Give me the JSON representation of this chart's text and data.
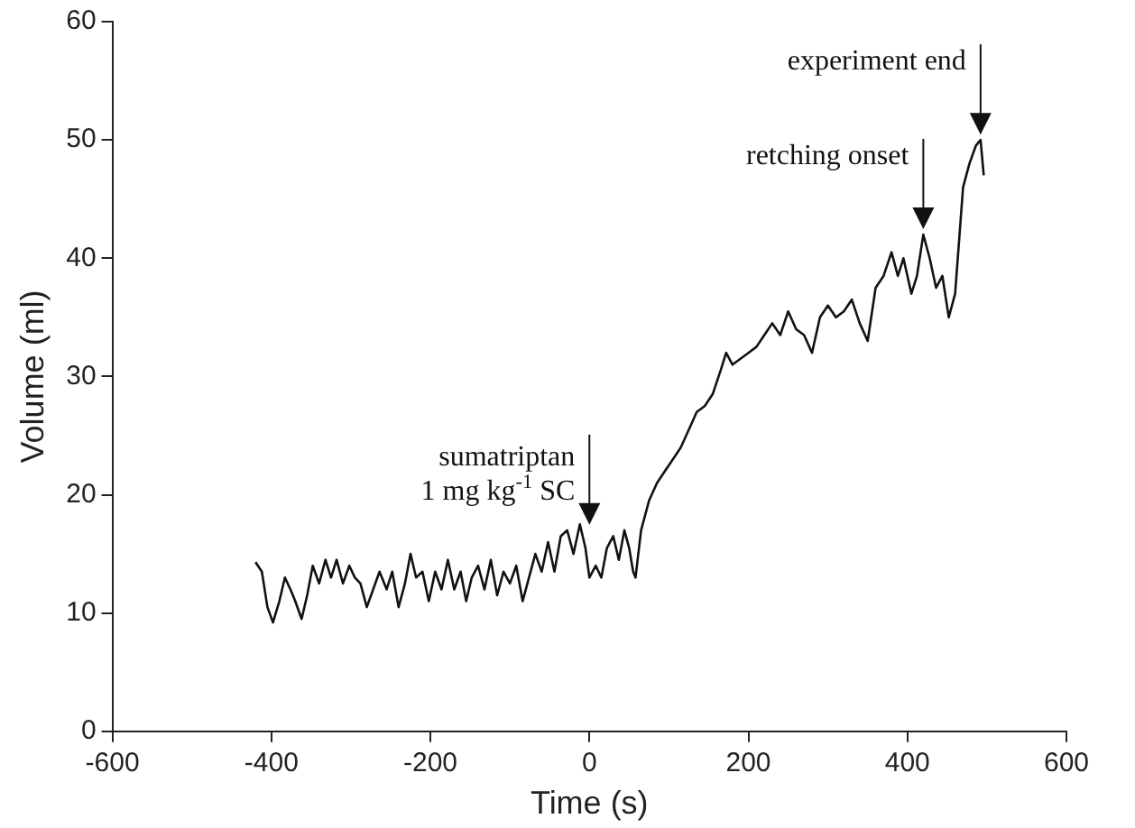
{
  "chart_data": {
    "type": "line",
    "xlabel": "Time (s)",
    "ylabel": "Volume (ml)",
    "xlim": [
      -600,
      600
    ],
    "xticks": [
      -600,
      -400,
      -200,
      0,
      200,
      400,
      600
    ],
    "ylim": [
      0,
      60
    ],
    "yticks": [
      0,
      10,
      20,
      30,
      40,
      50,
      60
    ],
    "grid": false,
    "legend": false,
    "marker": "none",
    "line_style": "solid",
    "series": [
      {
        "color": "#111111",
        "x": [
          -420,
          -412,
          -405,
          -398,
          -390,
          -383,
          -376,
          -370,
          -362,
          -355,
          -348,
          -340,
          -332,
          -325,
          -318,
          -310,
          -302,
          -295,
          -288,
          -280,
          -272,
          -264,
          -255,
          -248,
          -240,
          -232,
          -225,
          -218,
          -210,
          -202,
          -194,
          -186,
          -178,
          -170,
          -162,
          -155,
          -148,
          -140,
          -132,
          -124,
          -116,
          -108,
          -100,
          -92,
          -84,
          -76,
          -68,
          -60,
          -52,
          -44,
          -36,
          -28,
          -20,
          -12,
          -5,
          0,
          8,
          15,
          22,
          30,
          37,
          44,
          50,
          55,
          58,
          65,
          75,
          85,
          95,
          105,
          115,
          125,
          135,
          145,
          155,
          165,
          172,
          180,
          190,
          200,
          210,
          220,
          230,
          240,
          250,
          260,
          270,
          280,
          290,
          300,
          310,
          320,
          330,
          340,
          350,
          360,
          370,
          380,
          388,
          395,
          405,
          412,
          420,
          428,
          436,
          444,
          452,
          460,
          470,
          478,
          486,
          492,
          496
        ],
        "values": [
          14.3,
          13.5,
          10.5,
          9.2,
          11,
          13,
          12,
          11,
          9.5,
          11.5,
          14,
          12.5,
          14.5,
          13,
          14.5,
          12.5,
          14,
          13,
          12.5,
          10.5,
          12,
          13.5,
          12,
          13.5,
          10.5,
          12.5,
          15,
          13,
          13.5,
          11,
          13.5,
          12,
          14.5,
          12,
          13.5,
          11,
          13,
          14,
          12,
          14.5,
          11.5,
          13.5,
          12.5,
          14,
          11,
          13,
          15,
          13.5,
          16,
          13.5,
          16.5,
          17,
          15,
          17.5,
          15.5,
          13,
          14,
          13,
          15.5,
          16.5,
          14.5,
          17,
          15.5,
          13.5,
          13,
          17,
          19.5,
          21,
          22,
          23,
          24,
          25.5,
          27,
          27.5,
          28.5,
          30.5,
          32,
          31,
          31.5,
          32,
          32.5,
          33.5,
          34.5,
          33.5,
          35.5,
          34,
          33.5,
          32,
          35,
          36,
          35,
          35.5,
          36.5,
          34.5,
          33,
          37.5,
          38.5,
          40.5,
          38.5,
          40,
          37,
          38.5,
          42,
          40,
          37.5,
          38.5,
          35,
          37,
          46,
          48,
          49.5,
          50,
          47
        ]
      }
    ],
    "annotations": [
      {
        "text": "sumatriptan\n1 mg kg$^{-1}$ SC",
        "x": 0,
        "y": 17
      },
      {
        "text": "retching onset",
        "x": 420,
        "y": 42
      },
      {
        "text": "experiment end",
        "x": 492,
        "y": 50
      }
    ]
  }
}
